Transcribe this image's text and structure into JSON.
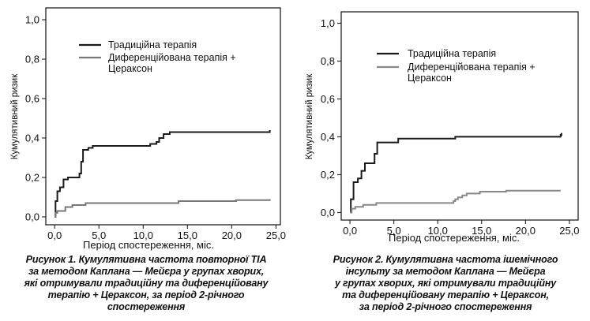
{
  "chart_data": [
    {
      "type": "line",
      "step": true,
      "xlabel": "Період спостереження, міс.",
      "ylabel": "Кумулятивний ризик",
      "xlim": [
        -1,
        25.5
      ],
      "ylim": [
        -0.04,
        1.06
      ],
      "xticks": [
        0.0,
        5.0,
        10.0,
        15.0,
        20.0,
        25.0
      ],
      "xtick_labels": [
        "0,0",
        "5,0",
        "10,0",
        "15,0",
        "20,0",
        "25,0"
      ],
      "yticks": [
        0.0,
        0.2,
        0.4,
        0.6,
        0.8,
        1.0
      ],
      "ytick_labels": [
        "0,0",
        "0,2",
        "0,4",
        "0,6",
        "0,8",
        "1,0"
      ],
      "grid": false,
      "legend_position": "top-left",
      "series": [
        {
          "name": "Традиційна терапія",
          "color": "#1a1a1a",
          "points": [
            [
              0,
              0
            ],
            [
              0.1,
              0.08
            ],
            [
              0.3,
              0.13
            ],
            [
              0.6,
              0.15
            ],
            [
              1.0,
              0.19
            ],
            [
              1.5,
              0.2
            ],
            [
              2.8,
              0.22
            ],
            [
              3.0,
              0.28
            ],
            [
              3.2,
              0.34
            ],
            [
              3.8,
              0.35
            ],
            [
              4.3,
              0.36
            ],
            [
              10.8,
              0.37
            ],
            [
              11.5,
              0.38
            ],
            [
              11.8,
              0.4
            ],
            [
              12.3,
              0.42
            ],
            [
              13.0,
              0.43
            ],
            [
              24.3,
              0.44
            ]
          ]
        },
        {
          "name": "Диференційована терапія + Цераксон",
          "color": "#777777",
          "points": [
            [
              0,
              0
            ],
            [
              0.1,
              0.02
            ],
            [
              0.3,
              0.03
            ],
            [
              1.2,
              0.05
            ],
            [
              2.0,
              0.06
            ],
            [
              3.5,
              0.07
            ],
            [
              13.0,
              0.07
            ],
            [
              14.0,
              0.08
            ],
            [
              20.5,
              0.085
            ],
            [
              24.3,
              0.09
            ]
          ]
        }
      ]
    },
    {
      "type": "line",
      "step": true,
      "xlabel": "Період спостереження, міс.",
      "ylabel": "Кумулятивний ризик",
      "xlim": [
        -1,
        26
      ],
      "ylim": [
        -0.04,
        1.06
      ],
      "xticks": [
        0.0,
        5.0,
        10.0,
        15.0,
        20.0,
        25.0
      ],
      "xtick_labels": [
        "0,0",
        "5,0",
        "10,0",
        "15,0",
        "20,0",
        "25,0"
      ],
      "yticks": [
        0.0,
        0.2,
        0.4,
        0.6,
        0.8,
        1.0
      ],
      "ytick_labels": [
        "0,0",
        "0,2",
        "0,4",
        "0,6",
        "0,8",
        "1,0"
      ],
      "grid": false,
      "legend_position": "top-left",
      "series": [
        {
          "name": "Традиційна терапія",
          "color": "#1a1a1a",
          "points": [
            [
              0,
              0
            ],
            [
              0.1,
              0.07
            ],
            [
              0.4,
              0.16
            ],
            [
              0.9,
              0.18
            ],
            [
              1.3,
              0.22
            ],
            [
              1.7,
              0.26
            ],
            [
              2.8,
              0.31
            ],
            [
              3.1,
              0.37
            ],
            [
              5.5,
              0.39
            ],
            [
              12.0,
              0.4
            ],
            [
              24.0,
              0.41
            ],
            [
              24.1,
              0.42
            ]
          ]
        },
        {
          "name": "Диференційована терапія + Цераксон",
          "color": "#888888",
          "points": [
            [
              0,
              0
            ],
            [
              0.2,
              0.02
            ],
            [
              0.6,
              0.03
            ],
            [
              1.5,
              0.04
            ],
            [
              3.0,
              0.05
            ],
            [
              11.8,
              0.06
            ],
            [
              12.0,
              0.07
            ],
            [
              12.3,
              0.08
            ],
            [
              12.8,
              0.09
            ],
            [
              13.3,
              0.1
            ],
            [
              14.8,
              0.11
            ],
            [
              17.8,
              0.115
            ],
            [
              24.0,
              0.115
            ]
          ]
        }
      ]
    }
  ],
  "figures": [
    {
      "legend": {
        "line1": "Традиційна терапія",
        "line2a": "Диференційована терапія +",
        "line2b": "Цераксон"
      },
      "caption": [
        "Рисунок 1. Кумулятивна частота повторної ТІА",
        "за методом Каплана — Мейєра у групах хворих,",
        "які отримували традиційну та диференційовану",
        "терапію + Цераксон, за період 2-річного",
        "спостереження"
      ]
    },
    {
      "legend": {
        "line1": "Традиційна терапія",
        "line2a": "Диференційована терапія +",
        "line2b": "Цераксон"
      },
      "caption": [
        "Рисунок 2. Кумулятивна частота ішемічного",
        "інсульту за методом Каплана — Мейєра",
        "у групах хворих, які отримували традиційну",
        "та диференційовану терапію + Цераксон,",
        "за період 2-річного спостереження"
      ]
    }
  ]
}
